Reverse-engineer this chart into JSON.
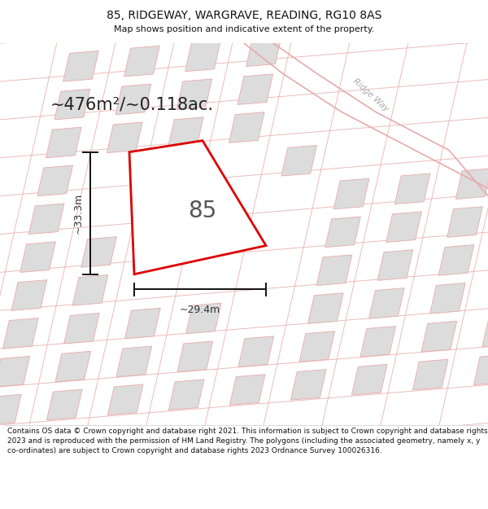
{
  "title": "85, RIDGEWAY, WARGRAVE, READING, RG10 8AS",
  "subtitle": "Map shows position and indicative extent of the property.",
  "area_text": "~476m²/~0.118ac.",
  "label_85": "85",
  "dim_h": "~33.3m",
  "dim_w": "~29.4m",
  "road_label": "Ridge Way",
  "footer": "Contains OS data © Crown copyright and database right 2021. This information is subject to Crown copyright and database rights 2023 and is reproduced with the permission of HM Land Registry. The polygons (including the associated geometry, namely x, y co-ordinates) are subject to Crown copyright and database rights 2023 Ordnance Survey 100026316.",
  "bg_map_color": "#f2efe9",
  "plot_fill": "#ffffff",
  "plot_edge_color": "#dd0000",
  "building_fill": "#dcdcdc",
  "road_line_color": "#e8aaaa",
  "dim_line_color": "#111111",
  "title_color": "#111111",
  "footer_color": "#111111",
  "road_label_color": "#aaaaaa",
  "area_text_color": "#222222"
}
